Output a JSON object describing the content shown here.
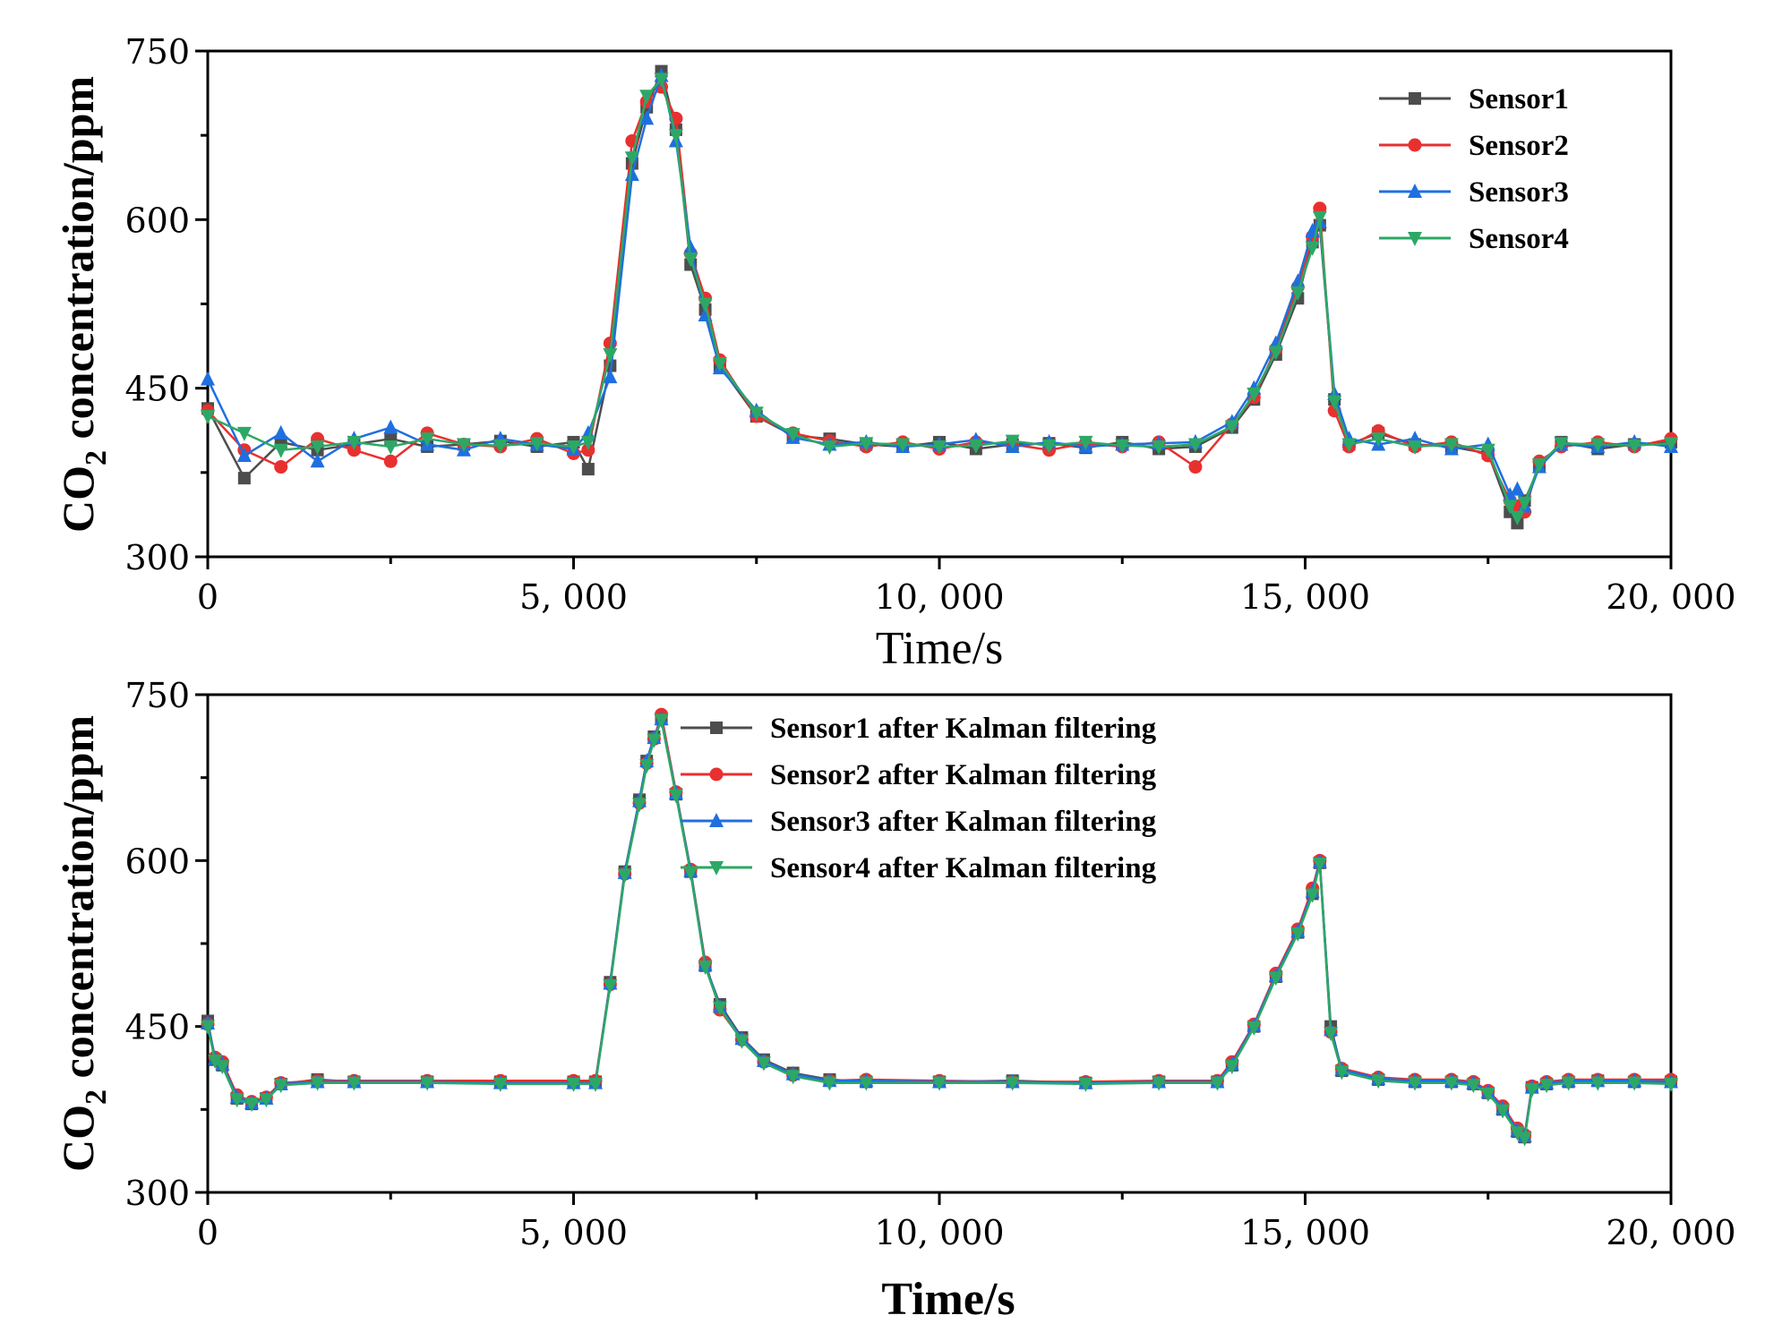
{
  "colors": {
    "sensor1": "#4d4d4d",
    "sensor2": "#e8302f",
    "sensor3": "#1f6fe0",
    "sensor4": "#2ca866"
  },
  "chart_data": [
    {
      "type": "line",
      "title": "",
      "xlabel": "Time/s",
      "ylabel_main": "CO",
      "ylabel_sub": "2",
      "ylabel_rest": " concentration/ppm",
      "xlim": [
        0,
        20000
      ],
      "ylim": [
        300,
        750
      ],
      "xticks": [
        0,
        5000,
        10000,
        15000,
        20000
      ],
      "xtick_labels": [
        "0",
        "5, 000",
        "10, 000",
        "15, 000",
        "20, 000"
      ],
      "yticks": [
        300,
        450,
        600,
        750
      ],
      "ytick_labels": [
        "300",
        "450",
        "600",
        "750"
      ],
      "legend_position": "top-right",
      "x": [
        0,
        500,
        1000,
        1500,
        2000,
        2500,
        3000,
        3500,
        4000,
        4500,
        5000,
        5200,
        5500,
        5800,
        6000,
        6200,
        6400,
        6600,
        6800,
        7000,
        7500,
        8000,
        8500,
        9000,
        9500,
        10000,
        10500,
        11000,
        11500,
        12000,
        12500,
        13000,
        13500,
        14000,
        14300,
        14600,
        14900,
        15100,
        15200,
        15400,
        15600,
        16000,
        16500,
        17000,
        17500,
        17800,
        17900,
        18000,
        18200,
        18500,
        19000,
        19500,
        20000
      ],
      "series": [
        {
          "name": "Sensor1",
          "marker": "square",
          "values": [
            432,
            370,
            402,
            395,
            400,
            405,
            398,
            400,
            403,
            398,
            402,
            378,
            470,
            650,
            700,
            732,
            680,
            560,
            520,
            470,
            425,
            408,
            405,
            400,
            398,
            402,
            396,
            400,
            401,
            397,
            402,
            396,
            398,
            415,
            440,
            480,
            530,
            580,
            595,
            440,
            400,
            410,
            400,
            398,
            392,
            340,
            330,
            350,
            380,
            402,
            396,
            400,
            402
          ]
        },
        {
          "name": "Sensor2",
          "marker": "circle",
          "values": [
            430,
            395,
            380,
            405,
            395,
            385,
            410,
            400,
            398,
            405,
            392,
            395,
            490,
            670,
            705,
            718,
            690,
            570,
            530,
            475,
            425,
            410,
            403,
            398,
            402,
            396,
            402,
            400,
            395,
            401,
            398,
            402,
            380,
            418,
            442,
            485,
            540,
            585,
            610,
            430,
            398,
            412,
            398,
            402,
            390,
            350,
            345,
            340,
            385,
            398,
            402,
            398,
            405
          ]
        },
        {
          "name": "Sensor3",
          "marker": "triangle-up",
          "values": [
            458,
            390,
            410,
            385,
            405,
            415,
            400,
            395,
            405,
            400,
            396,
            410,
            460,
            640,
            690,
            728,
            670,
            575,
            515,
            468,
            430,
            406,
            400,
            402,
            398,
            400,
            404,
            398,
            402,
            398,
            400,
            401,
            402,
            420,
            450,
            490,
            545,
            590,
            598,
            445,
            405,
            400,
            405,
            396,
            400,
            355,
            360,
            345,
            380,
            400,
            398,
            402,
            398
          ]
        },
        {
          "name": "Sensor4",
          "marker": "triangle-down",
          "values": [
            425,
            410,
            395,
            398,
            402,
            398,
            405,
            400,
            399,
            401,
            398,
            402,
            480,
            655,
            710,
            725,
            675,
            565,
            525,
            472,
            428,
            409,
            398,
            401,
            400,
            398,
            399,
            403,
            399,
            402,
            399,
            398,
            400,
            416,
            445,
            482,
            535,
            575,
            602,
            438,
            400,
            405,
            398,
            400,
            395,
            345,
            335,
            348,
            382,
            401,
            400,
            399,
            401
          ]
        }
      ]
    },
    {
      "type": "line",
      "title": "",
      "xlabel": "Time/s",
      "ylabel_main": "CO",
      "ylabel_sub": "2",
      "ylabel_rest": " concentration/ppm",
      "xlim": [
        0,
        20000
      ],
      "ylim": [
        300,
        750
      ],
      "xticks": [
        0,
        5000,
        10000,
        15000,
        20000
      ],
      "xtick_labels": [
        "0",
        "5, 000",
        "10, 000",
        "15, 000",
        "20, 000"
      ],
      "yticks": [
        300,
        450,
        600,
        750
      ],
      "ytick_labels": [
        "300",
        "450",
        "600",
        "750"
      ],
      "legend_position": "top-left",
      "x": [
        0,
        100,
        200,
        400,
        600,
        800,
        1000,
        1500,
        2000,
        3000,
        4000,
        5000,
        5300,
        5500,
        5700,
        5900,
        6000,
        6100,
        6200,
        6400,
        6600,
        6800,
        7000,
        7300,
        7600,
        8000,
        8500,
        9000,
        10000,
        11000,
        12000,
        13000,
        13800,
        14000,
        14300,
        14600,
        14900,
        15100,
        15200,
        15350,
        15500,
        16000,
        16500,
        17000,
        17300,
        17500,
        17700,
        17900,
        18000,
        18100,
        18300,
        18600,
        19000,
        19500,
        20000
      ],
      "series": [
        {
          "name": "Sensor1 after Kalman filtering",
          "marker": "square",
          "values": [
            455,
            420,
            415,
            385,
            380,
            385,
            398,
            402,
            400,
            400,
            400,
            400,
            400,
            490,
            590,
            655,
            690,
            712,
            728,
            660,
            590,
            505,
            470,
            440,
            420,
            408,
            402,
            400,
            400,
            401,
            399,
            400,
            400,
            415,
            450,
            495,
            535,
            570,
            598,
            450,
            410,
            402,
            400,
            400,
            398,
            390,
            375,
            355,
            350,
            395,
            398,
            400,
            401,
            400,
            400
          ]
        },
        {
          "name": "Sensor2 after Kalman filtering",
          "marker": "circle",
          "values": [
            452,
            422,
            418,
            388,
            382,
            386,
            399,
            401,
            401,
            401,
            401,
            401,
            401,
            488,
            588,
            652,
            688,
            710,
            732,
            662,
            592,
            508,
            465,
            438,
            418,
            406,
            401,
            402,
            401,
            400,
            400,
            401,
            401,
            418,
            452,
            498,
            538,
            575,
            600,
            445,
            412,
            404,
            402,
            402,
            400,
            392,
            378,
            358,
            352,
            396,
            400,
            402,
            402,
            402,
            402
          ]
        },
        {
          "name": "Sensor3 after Kalman filtering",
          "marker": "triangle-up",
          "values": [
            453,
            421,
            416,
            386,
            381,
            385,
            398,
            400,
            400,
            400,
            399,
            399,
            399,
            489,
            589,
            654,
            690,
            711,
            728,
            661,
            591,
            506,
            468,
            439,
            419,
            407,
            401,
            401,
            400,
            400,
            399,
            400,
            400,
            416,
            451,
            496,
            536,
            572,
            599,
            447,
            411,
            403,
            401,
            401,
            399,
            391,
            376,
            356,
            351,
            395,
            399,
            401,
            401,
            401,
            400
          ]
        },
        {
          "name": "Sensor4 after Kalman filtering",
          "marker": "triangle-down",
          "values": [
            450,
            419,
            414,
            384,
            380,
            384,
            397,
            399,
            399,
            399,
            398,
            398,
            398,
            487,
            587,
            651,
            686,
            709,
            727,
            659,
            589,
            504,
            467,
            437,
            417,
            405,
            399,
            399,
            399,
            399,
            398,
            399,
            399,
            414,
            449,
            494,
            534,
            569,
            597,
            444,
            409,
            401,
            399,
            399,
            397,
            389,
            374,
            354,
            349,
            393,
            397,
            399,
            399,
            399,
            398
          ]
        }
      ]
    }
  ]
}
